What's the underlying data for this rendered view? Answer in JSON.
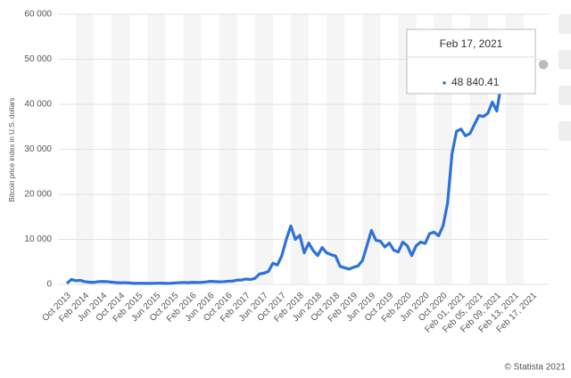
{
  "chart_data": {
    "type": "line",
    "y_axis_label": "Bitcoin price index in U.S. dollars",
    "source": "© Statista 2021",
    "categories": [
      "Oct 2013",
      null,
      null,
      null,
      "Feb 2014",
      null,
      null,
      null,
      "Jun 2014",
      null,
      null,
      null,
      "Oct 2014",
      null,
      null,
      null,
      "Feb 2015",
      null,
      null,
      null,
      "Jun 2015",
      null,
      null,
      null,
      "Oct 2015",
      null,
      null,
      null,
      "Feb 2016",
      null,
      null,
      null,
      "Jun 2016",
      null,
      null,
      null,
      "Oct 2016",
      null,
      null,
      null,
      "Feb 2017",
      null,
      null,
      null,
      "Jun 2017",
      null,
      null,
      null,
      "Oct 2017",
      null,
      null,
      null,
      "Feb 2018",
      null,
      null,
      null,
      "Jun 2018",
      null,
      null,
      null,
      "Oct 2018",
      null,
      null,
      null,
      "Feb 2019",
      null,
      null,
      null,
      "Jun 2019",
      null,
      null,
      null,
      "Oct 2019",
      null,
      null,
      null,
      "Feb 2020",
      null,
      null,
      null,
      "Jun 2020",
      null,
      null,
      null,
      "Oct 2020",
      null,
      null,
      null,
      "Feb 01, 2021",
      null,
      null,
      null,
      "Feb 05, 2021",
      null,
      null,
      null,
      "Feb 09, 2021",
      null,
      null,
      null,
      "Feb 13, 2021",
      null,
      null,
      null,
      "Feb 17, 2021"
    ],
    "series": [
      {
        "name": "Bitcoin price index",
        "color": "#2c72d8",
        "values": [
          200,
          1100,
          800,
          900,
          600,
          500,
          450,
          600,
          640,
          600,
          500,
          400,
          340,
          380,
          320,
          230,
          250,
          250,
          230,
          230,
          260,
          280,
          230,
          236,
          310,
          380,
          430,
          370,
          440,
          420,
          450,
          530,
          670,
          620,
          575,
          610,
          700,
          740,
          960,
          970,
          1190,
          1080,
          1350,
          2300,
          2500,
          2870,
          4700,
          4300,
          6400,
          10000,
          13000,
          10000,
          10900,
          7000,
          9200,
          7500,
          6400,
          8200,
          7000,
          6600,
          6300,
          4000,
          3700,
          3400,
          3800,
          4100,
          5300,
          8600,
          12000,
          9800,
          9600,
          8300,
          9200,
          7600,
          7200,
          9400,
          8600,
          6400,
          8600,
          9400,
          9100,
          11300,
          11600,
          10800,
          13000,
          18000,
          29000,
          34000,
          34500,
          33000,
          33500,
          35500,
          37500,
          37300,
          38000,
          40500,
          38500,
          44500,
          47500,
          48000,
          49000,
          48200,
          48500,
          49200,
          48840.41
        ],
        "value_labels": [
          null,
          null,
          null,
          null,
          null,
          null,
          null,
          null,
          null,
          null,
          null,
          null,
          null,
          null,
          null,
          null,
          null,
          null,
          null,
          null,
          null,
          null,
          null,
          null,
          null,
          null,
          null,
          null,
          null,
          null,
          null,
          null,
          null,
          null,
          null,
          null,
          null,
          null,
          null,
          null,
          null,
          null,
          null,
          null,
          null,
          null,
          null,
          null,
          null,
          null,
          null,
          null,
          null,
          null,
          null,
          null,
          null,
          null,
          null,
          null,
          null,
          null,
          null,
          null,
          null,
          null,
          null,
          null,
          null,
          null,
          null,
          null,
          null,
          null,
          null,
          null,
          null,
          null,
          null,
          null,
          null,
          null,
          null,
          null,
          null,
          null,
          null,
          null,
          null,
          null,
          null,
          null,
          null,
          null,
          null,
          null,
          null,
          null,
          null,
          null,
          null,
          null,
          null,
          null,
          "48 840.41"
        ]
      }
    ],
    "ylim": [
      0,
      60000
    ],
    "yticks": [
      0,
      {
        "value": 10000,
        "label": "10 000"
      },
      {
        "value": 20000,
        "label": "20 000"
      },
      {
        "value": 30000,
        "label": "30 000"
      },
      {
        "value": 40000,
        "label": "40 000"
      },
      {
        "value": 50000,
        "label": "50 000"
      },
      {
        "value": 60000,
        "label": "60 000"
      }
    ],
    "grid": true
  }
}
